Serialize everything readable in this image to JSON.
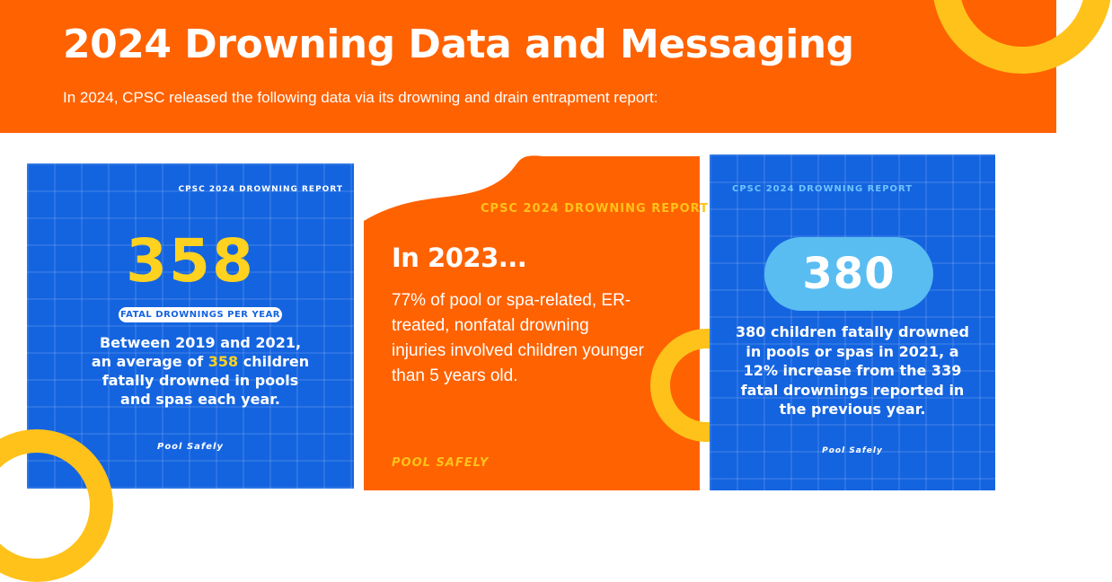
{
  "header": {
    "title": "2024 Drowning Data and Messaging",
    "subtitle": "In 2024, CPSC released the following data via its drowning and drain entrapment report:"
  },
  "cards": [
    {
      "report_label": "CPSC 2024 DROWNING REPORT",
      "big_number": "358",
      "pill": "FATAL DROWNINGS PER YEAR",
      "body_before": "Between 2019 and 2021, an average of ",
      "body_highlight": "358",
      "body_after": " children fatally drowned in pools and spas each year.",
      "brand": "Pool Safely"
    },
    {
      "report_label": "CPSC 2024 DROWNING REPORT",
      "title": "In 2023...",
      "body": "77% of pool or spa-related, ER-treated, nonfatal drowning injuries involved children younger than 5 years old.",
      "brand": "POOL SAFELY"
    },
    {
      "report_label": "CPSC 2024 DROWNING REPORT",
      "big_number": "380",
      "body": "380 children fatally drowned in pools or spas in 2021, a 12% increase from the 339 fatal drownings reported in the previous year.",
      "brand": "Pool Safely"
    }
  ],
  "colors": {
    "orange": "#ff6200",
    "blue": "#1464e0",
    "yellow": "#ffc21a",
    "light_blue": "#59bdf2"
  }
}
